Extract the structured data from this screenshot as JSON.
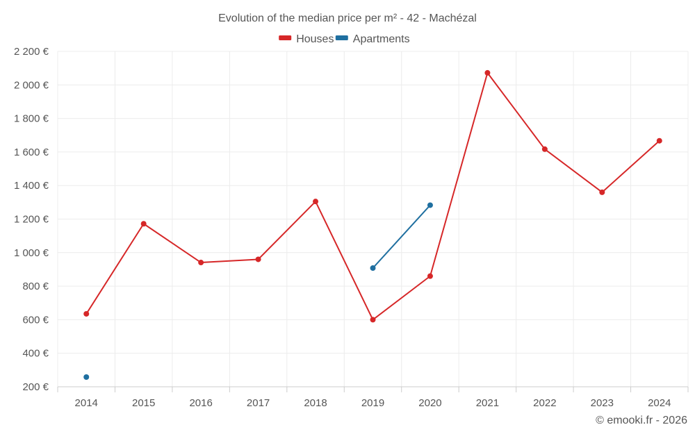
{
  "chart_data": {
    "type": "line",
    "title": "Evolution of the median price per m² - 42 - Machézal",
    "categories": [
      "2014",
      "2015",
      "2016",
      "2017",
      "2018",
      "2019",
      "2020",
      "2021",
      "2022",
      "2023",
      "2024"
    ],
    "series": [
      {
        "name": "Houses",
        "color": "#d62728",
        "values": [
          635,
          1172,
          941,
          960,
          1305,
          600,
          860,
          2072,
          1617,
          1360,
          1667
        ]
      },
      {
        "name": "Apartments",
        "color": "#1f6fa0",
        "values": [
          258,
          null,
          null,
          null,
          null,
          908,
          1283,
          null,
          null,
          null,
          null
        ]
      }
    ],
    "ylim": [
      200,
      2200
    ],
    "yticks": [
      200,
      400,
      600,
      800,
      1000,
      1200,
      1400,
      1600,
      1800,
      2000,
      2200
    ],
    "ytick_labels": [
      "200 €",
      "400 €",
      "600 €",
      "800 €",
      "1 000 €",
      "1 200 €",
      "1 400 €",
      "1 600 €",
      "1 800 €",
      "2 000 €",
      "2 200 €"
    ],
    "grid": true,
    "legend_position": "top-center"
  },
  "credit": "© emooki.fr - 2026"
}
